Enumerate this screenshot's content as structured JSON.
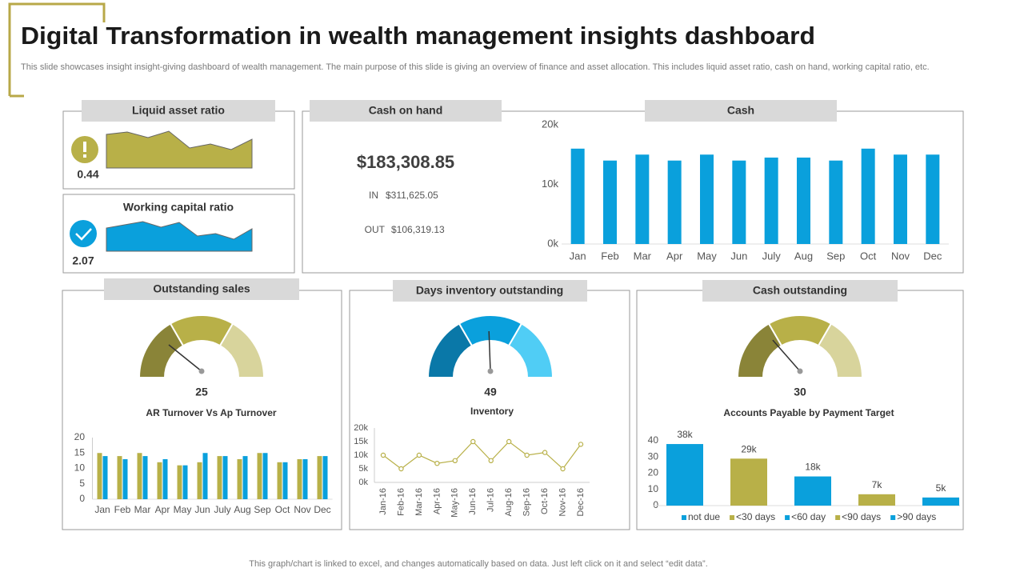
{
  "header": {
    "title": "Digital Transformation in wealth management insights dashboard",
    "subtitle": "This slide showcases insight insight-giving dashboard of wealth management. The main purpose of this slide is giving an overview of finance and asset allocation. This includes liquid asset ratio, cash on hand, working capital ratio, etc."
  },
  "cash_on_hand": {
    "title": "Cash on hand",
    "value": "$183,308.85",
    "in_label": "IN",
    "in_value": "$311,625.05",
    "out_label": "OUT",
    "out_value": "$106,319.13"
  },
  "footer": "This graph/chart is linked to excel, and changes automatically based on data. Just left click on it and select “edit data”.",
  "chart_data": [
    {
      "type": "area",
      "title": "Liquid asset ratio",
      "kpi": "0.44",
      "color": "#b8b048",
      "values": [
        42,
        45,
        38,
        46,
        25,
        30,
        23,
        36
      ]
    },
    {
      "type": "area",
      "title": "Working capital ratio",
      "kpi": "2.07",
      "color": "#0aa0dc",
      "values": [
        29,
        33,
        37,
        30,
        36,
        19,
        22,
        15,
        28
      ]
    },
    {
      "type": "bar",
      "title": "Cash",
      "color": "#0aa0dc",
      "categories": [
        "Jan",
        "Feb",
        "Mar",
        "Apr",
        "May",
        "Jun",
        "July",
        "Aug",
        "Sep",
        "Oct",
        "Nov",
        "Dec"
      ],
      "values": [
        16000,
        14000,
        15000,
        14000,
        15000,
        14000,
        14500,
        14500,
        14000,
        16000,
        15000,
        15000
      ],
      "ylim": [
        0,
        20000
      ],
      "yticks": [
        {
          "value": 0,
          "label": "0k"
        },
        {
          "value": 10000,
          "label": "10k"
        },
        {
          "value": 20000,
          "label": "20k"
        }
      ]
    },
    {
      "type": "gauge",
      "title": "Outstanding sales",
      "value": 25,
      "ylim": [
        0,
        100
      ],
      "colors": [
        "#8a8438",
        "#b8b048",
        "#d8d49c"
      ]
    },
    {
      "type": "gauge",
      "title": "Days inventory outstanding",
      "value": 49,
      "ylim": [
        0,
        100
      ],
      "colors": [
        "#0a78a8",
        "#0aa0dc",
        "#50cdf5"
      ]
    },
    {
      "type": "gauge",
      "title": "Cash outstanding",
      "value": 30,
      "ylim": [
        0,
        100
      ],
      "colors": [
        "#8a8438",
        "#b8b048",
        "#d8d49c"
      ]
    },
    {
      "type": "bar",
      "title": "AR Turnover Vs Ap Turnover",
      "categories": [
        "Jan",
        "Feb",
        "Mar",
        "Apr",
        "May",
        "Jun",
        "July",
        "Aug",
        "Sep",
        "Oct",
        "Nov",
        "Dec"
      ],
      "series": [
        {
          "color": "#b8b048",
          "values": [
            15,
            14,
            15,
            12,
            11,
            12,
            14,
            13,
            15,
            12,
            13,
            14
          ]
        },
        {
          "color": "#0aa0dc",
          "values": [
            14,
            13,
            14,
            13,
            11,
            15,
            14,
            14,
            15,
            12,
            13,
            14
          ]
        }
      ],
      "ylim": [
        0,
        20
      ],
      "yticks": [
        0,
        5,
        10,
        15,
        20
      ]
    },
    {
      "type": "line",
      "title": "Inventory",
      "color": "#b8b048",
      "categories": [
        "Jan-16",
        "Feb-16",
        "Mar-16",
        "Apr-16",
        "May-16",
        "Jun-16",
        "Jul-16",
        "Aug-16",
        "Sep-16",
        "Oct-16",
        "Nov-16",
        "Dec-16"
      ],
      "values": [
        10000,
        5000,
        10000,
        7000,
        8000,
        15000,
        8000,
        15000,
        10000,
        11000,
        5000,
        14000
      ],
      "ylim": [
        0,
        20000
      ],
      "yticks": [
        {
          "value": 0,
          "label": "0k"
        },
        {
          "value": 5000,
          "label": "5k"
        },
        {
          "value": 10000,
          "label": "10k"
        },
        {
          "value": 15000,
          "label": "15k"
        },
        {
          "value": 20000,
          "label": "20k"
        }
      ]
    },
    {
      "type": "bar",
      "title": "Accounts Payable  by Payment Target",
      "categories": [
        "not due",
        "<30 days",
        "<60 day",
        "<90 days",
        ">90 days"
      ],
      "values": [
        38,
        29,
        18,
        7,
        5
      ],
      "value_labels": [
        "38k",
        "29k",
        "18k",
        "7k",
        "5k"
      ],
      "colors": [
        "#0aa0dc",
        "#b8b048",
        "#0aa0dc",
        "#b8b048",
        "#0aa0dc"
      ],
      "ylim": [
        0,
        40
      ],
      "yticks": [
        0,
        10,
        20,
        30,
        40
      ],
      "legend": "bottom"
    }
  ]
}
